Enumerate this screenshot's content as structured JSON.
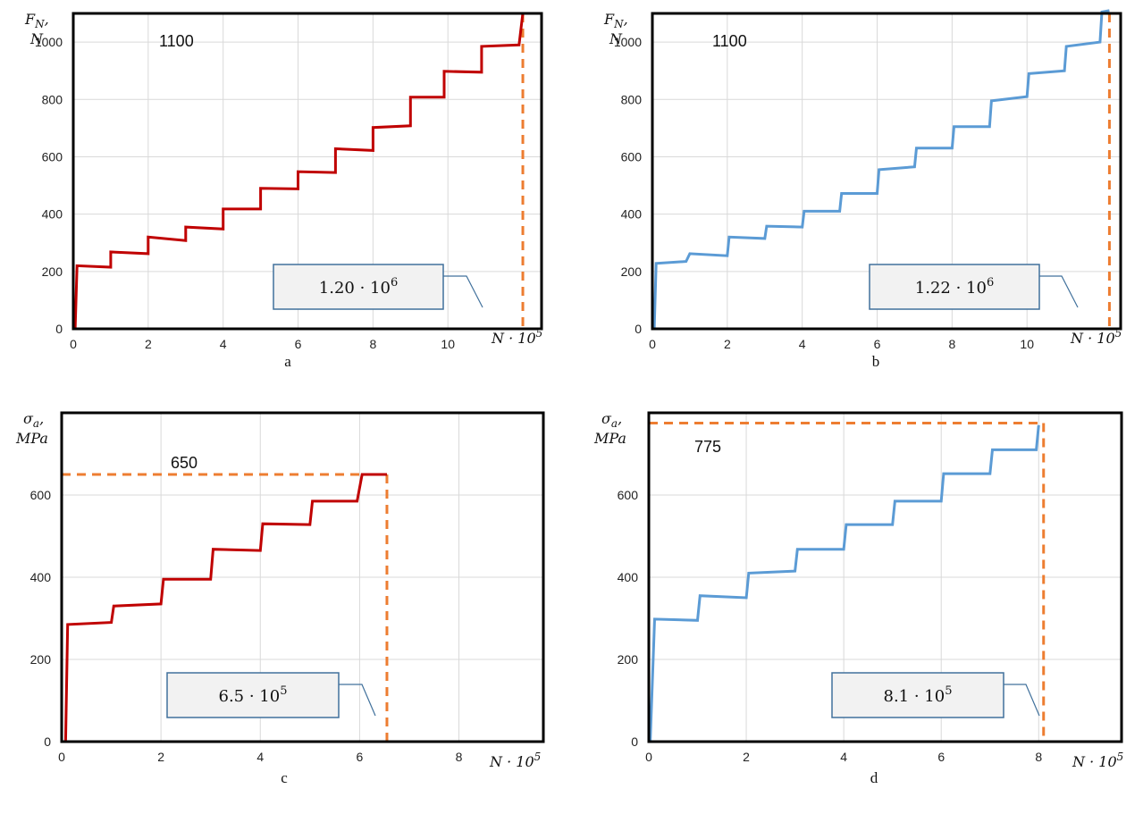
{
  "colors": {
    "red": "#c00000",
    "blue": "#5b9bd5",
    "orange": "#ed7d31",
    "grid": "#d9d9d9",
    "callout_fill": "#f2f2f2",
    "callout_border": "#41719c"
  },
  "chart_data": [
    {
      "id": "a",
      "type": "line",
      "caption": "a",
      "ylabel_line1": "F",
      "ylabel_sub": "N",
      "ylabel_line2": "N",
      "xlabel": "N · 10",
      "xlabel_sup": "5",
      "xlim": [
        0,
        12.5
      ],
      "ylim": [
        0,
        1100
      ],
      "xticks": [
        0,
        2,
        4,
        6,
        8,
        10
      ],
      "yticks": [
        0,
        200,
        400,
        600,
        800,
        1000
      ],
      "limit_value": 1100,
      "limit_label": "1100",
      "failure_x": 12.0,
      "callout_mantissa": "1.20 · 10",
      "callout_exp": "6",
      "color": "red",
      "series": [
        {
          "x": [
            0.05,
            0.1,
            1,
            1,
            2,
            2,
            3,
            3,
            4,
            4,
            5,
            5,
            6,
            6,
            7,
            7,
            8,
            8,
            9,
            9,
            9.9,
            9.9,
            10.9,
            10.9,
            11.9,
            12.0
          ],
          "y": [
            0,
            220,
            215,
            268,
            262,
            320,
            308,
            355,
            348,
            418,
            418,
            490,
            488,
            548,
            545,
            628,
            622,
            702,
            708,
            808,
            808,
            898,
            895,
            985,
            990,
            1100
          ]
        }
      ]
    },
    {
      "id": "b",
      "type": "line",
      "caption": "b",
      "ylabel_line1": "F",
      "ylabel_sub": "N",
      "ylabel_line2": "N",
      "xlabel": "N · 10",
      "xlabel_sup": "5",
      "xlim": [
        0,
        12.5
      ],
      "ylim": [
        0,
        1100
      ],
      "xticks": [
        0,
        2,
        4,
        6,
        8,
        10
      ],
      "yticks": [
        0,
        200,
        400,
        600,
        800,
        1000
      ],
      "limit_value": 1100,
      "limit_label": "1100",
      "failure_x": 12.2,
      "callout_mantissa": "1.22 · 10",
      "callout_exp": "6",
      "color": "blue",
      "series": [
        {
          "x": [
            0.05,
            0.1,
            0.9,
            1.0,
            2,
            2.05,
            3,
            3.05,
            4,
            4.05,
            5,
            5.05,
            6,
            6.05,
            7,
            7.05,
            8,
            8.05,
            9,
            9.05,
            10,
            10.05,
            11,
            11.05,
            11.95,
            12.0,
            12.2
          ],
          "y": [
            0,
            228,
            235,
            262,
            255,
            320,
            315,
            358,
            355,
            410,
            410,
            472,
            472,
            555,
            565,
            630,
            630,
            705,
            705,
            795,
            810,
            890,
            900,
            985,
            1000,
            1105,
            1110
          ]
        }
      ]
    },
    {
      "id": "c",
      "type": "line",
      "caption": "c",
      "ylabel_line1": "σ",
      "ylabel_sub": "a",
      "ylabel_line2": "MPa",
      "xlabel": "N · 10",
      "xlabel_sup": "5",
      "xlim": [
        0,
        9.7
      ],
      "ylim": [
        0,
        800
      ],
      "xticks": [
        0,
        2,
        4,
        6,
        8
      ],
      "yticks": [
        0,
        200,
        400,
        600
      ],
      "limit_value": 650,
      "limit_label": "650",
      "failure_x": 6.55,
      "callout_mantissa": "6.5 · 10",
      "callout_exp": "5",
      "color": "red",
      "series": [
        {
          "x": [
            0.08,
            0.12,
            1,
            1.05,
            2,
            2.05,
            3,
            3.05,
            4,
            4.05,
            5,
            5.05,
            5.95,
            6.05,
            6.55
          ],
          "y": [
            0,
            285,
            290,
            330,
            335,
            395,
            395,
            468,
            465,
            530,
            528,
            585,
            585,
            650,
            650
          ]
        }
      ]
    },
    {
      "id": "d",
      "type": "line",
      "caption": "d",
      "ylabel_line1": "σ",
      "ylabel_sub": "a",
      "ylabel_line2": "MPa",
      "xlabel": "N · 10",
      "xlabel_sup": "5",
      "xlim": [
        0,
        9.7
      ],
      "ylim": [
        0,
        800
      ],
      "xticks": [
        0,
        2,
        4,
        6,
        8
      ],
      "yticks": [
        0,
        200,
        400,
        600
      ],
      "limit_value": 775,
      "limit_label": "775",
      "failure_x": 8.1,
      "callout_mantissa": "8.1 · 10",
      "callout_exp": "5",
      "color": "blue",
      "series": [
        {
          "x": [
            0.03,
            0.12,
            1,
            1.05,
            2,
            2.05,
            3,
            3.05,
            4,
            4.05,
            5,
            5.05,
            6,
            6.05,
            7,
            7.05,
            7.95,
            8.0
          ],
          "y": [
            0,
            298,
            295,
            355,
            350,
            410,
            415,
            468,
            468,
            528,
            528,
            585,
            585,
            652,
            652,
            710,
            710,
            770
          ]
        }
      ]
    }
  ]
}
